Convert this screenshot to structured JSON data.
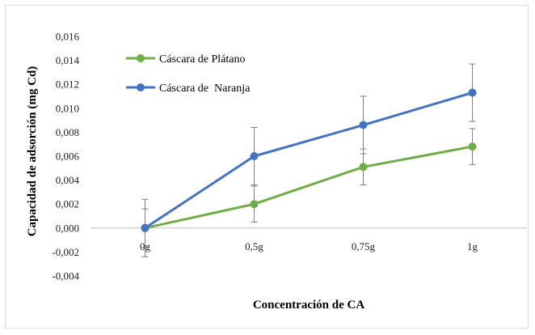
{
  "chart_data": {
    "type": "line",
    "title": "",
    "xlabel": "Concentración de CA",
    "ylabel": "Capacidad de adsorción (mg Cd)",
    "categories": [
      "0g",
      "0,5g",
      "0,75g",
      "1g"
    ],
    "ylim": [
      -0.004,
      0.016
    ],
    "ytick_step": 0.002,
    "ytick_labels": [
      "-0,004",
      "-0,002",
      "0,000",
      "0,002",
      "0,004",
      "0,006",
      "0,008",
      "0,010",
      "0,012",
      "0,014",
      "0,016"
    ],
    "grid": false,
    "legend_position": "top-left",
    "series": [
      {
        "name": "Cáscara de Plátano",
        "color": "#70ad47",
        "values": [
          0.0,
          0.002,
          0.0051,
          0.0068
        ],
        "error": [
          0.0016,
          0.0015,
          0.0015,
          0.0015
        ]
      },
      {
        "name": "Cáscara de  Naranja",
        "color": "#4472c4",
        "values": [
          0.0,
          0.006,
          0.0086,
          0.0113
        ],
        "error": [
          0.0024,
          0.0024,
          0.0024,
          0.0024
        ]
      }
    ]
  }
}
